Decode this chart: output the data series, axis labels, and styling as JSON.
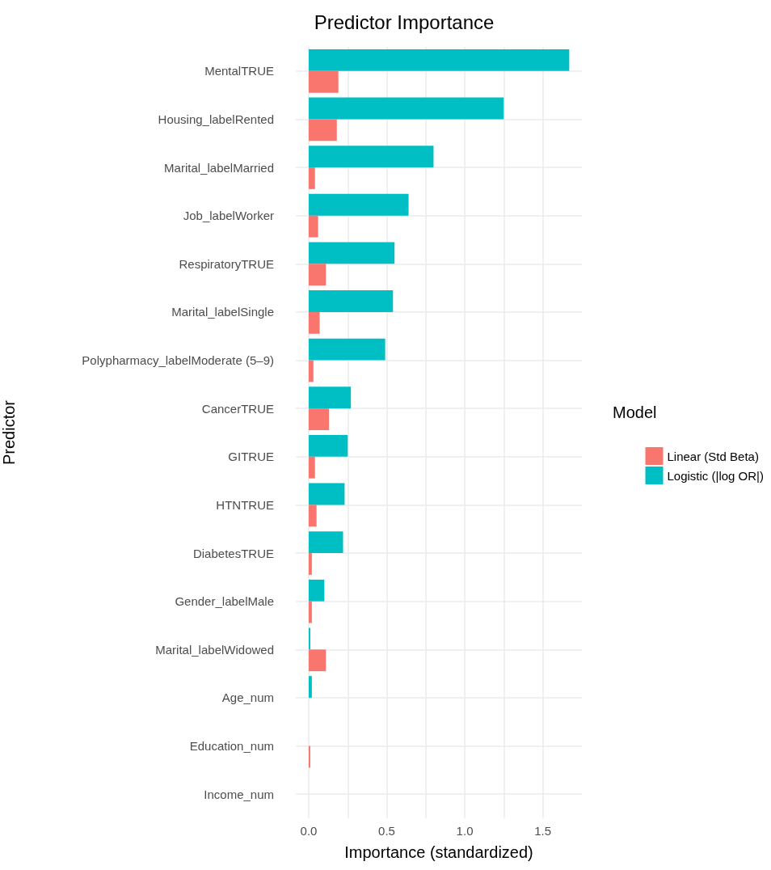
{
  "chart_data": {
    "type": "bar",
    "orientation": "horizontal",
    "title": "Predictor Importance",
    "xlabel": "Importance (standardized)",
    "ylabel": "Predictor",
    "legend_title": "Model",
    "legend": "right",
    "grid": true,
    "categories": [
      "MentalTRUE",
      "Housing_labelRented",
      "Marital_labelMarried",
      "Job_labelWorker",
      "RespiratoryTRUE",
      "Marital_labelSingle",
      "Polypharmacy_labelModerate (5–9)",
      "CancerTRUE",
      "GITRUE",
      "HTNTRUE",
      "DiabetesTRUE",
      "Gender_labelMale",
      "Marital_labelWidowed",
      "Age_num",
      "Education_num",
      "Income_num"
    ],
    "series": [
      {
        "name": "Linear (Std Beta)",
        "color": "#f8766d",
        "values": [
          0.19,
          0.18,
          0.04,
          0.06,
          0.11,
          0.07,
          0.03,
          0.13,
          0.04,
          0.05,
          0.02,
          0.02,
          0.11,
          null,
          0.01,
          null
        ]
      },
      {
        "name": "Logistic (|log OR|)",
        "color": "#00bfc4",
        "values": [
          1.67,
          1.25,
          0.8,
          0.64,
          0.55,
          0.54,
          0.49,
          0.27,
          0.25,
          0.23,
          0.22,
          0.1,
          0.01,
          0.02,
          null,
          null
        ]
      }
    ],
    "xlim": [
      -0.083,
      1.751
    ],
    "xticks": [
      {
        "value": 0,
        "label": "0.0"
      },
      {
        "value": 0.25,
        "label": null
      },
      {
        "value": 0.5,
        "label": "0.5"
      },
      {
        "value": 0.75,
        "label": null
      },
      {
        "value": 1,
        "label": "1.0"
      },
      {
        "value": 1.25,
        "label": null
      },
      {
        "value": 1.5,
        "label": "1.5"
      }
    ]
  }
}
